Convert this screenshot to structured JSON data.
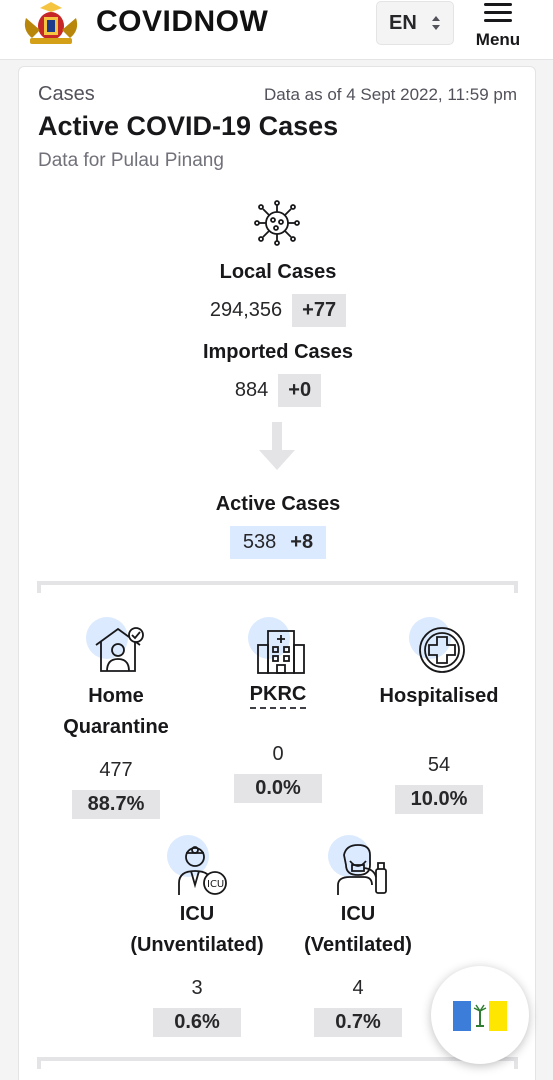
{
  "header": {
    "brand": "COVIDNOW",
    "lang": "EN",
    "menu_label": "Menu",
    "logo_icon": "malaysia-coat-of-arms-icon"
  },
  "card": {
    "eyebrow": "Cases",
    "timestamp": "Data as of 4 Sept 2022, 11:59 pm",
    "title": "Active COVID-19 Cases",
    "subtitle": "Data for Pulau Pinang"
  },
  "flow": {
    "local": {
      "label": "Local Cases",
      "value": "294,356",
      "delta": "+77"
    },
    "imported": {
      "label": "Imported Cases",
      "value": "884",
      "delta": "+0"
    },
    "active": {
      "label": "Active Cases",
      "value": "538",
      "delta": "+8"
    }
  },
  "breakdown": [
    {
      "name_line1": "Home",
      "name_line2": "Quarantine",
      "value": "477",
      "pct": "88.7%",
      "icon": "home-quarantine-icon"
    },
    {
      "name_line1": "PKRC",
      "value": "0",
      "pct": "0.0%",
      "icon": "pkrc-building-icon"
    },
    {
      "name_line1": "Hospitalised",
      "value": "54",
      "pct": "10.0%",
      "icon": "hospital-cross-icon"
    },
    {
      "name_line1": "ICU",
      "name_line2": "(Unventilated)",
      "value": "3",
      "pct": "0.6%",
      "icon": "icu-doctor-icon"
    },
    {
      "name_line1": "ICU",
      "name_line2": "(Ventilated)",
      "value": "4",
      "pct": "0.7%",
      "icon": "ventilator-patient-icon"
    }
  ],
  "colors": {
    "chip_gray": "#e4e4e7",
    "active_blue": "#dbeafe",
    "flag_blue": "#3b7dd8",
    "flag_white": "#ffffff",
    "flag_yellow": "#ffe600"
  }
}
